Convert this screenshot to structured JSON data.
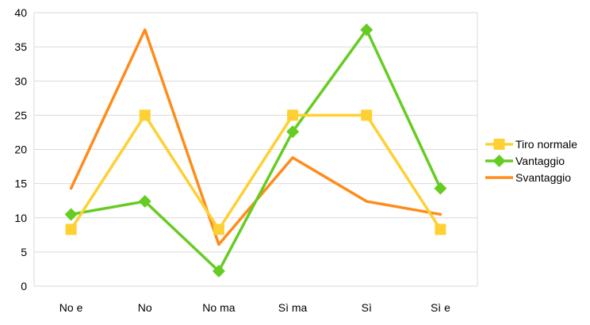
{
  "chart_data": {
    "type": "line",
    "title": "",
    "xlabel": "",
    "ylabel": "",
    "categories": [
      "No e",
      "No",
      "No ma",
      "Sì ma",
      "Sì",
      "Sì e"
    ],
    "ylim": [
      0,
      40
    ],
    "yticks": [
      0,
      5,
      10,
      15,
      20,
      25,
      30,
      35,
      40
    ],
    "grid": true,
    "legend_position": "right",
    "series": [
      {
        "name": "Tiro normale",
        "values": [
          8.3,
          25.0,
          8.3,
          25.0,
          25.0,
          8.3
        ],
        "color": "#FFD033",
        "marker": "square"
      },
      {
        "name": "Vantaggio",
        "values": [
          10.5,
          12.4,
          2.2,
          22.6,
          37.5,
          14.3
        ],
        "color": "#66CC22",
        "marker": "diamond"
      },
      {
        "name": "Svantaggio",
        "values": [
          14.3,
          37.5,
          6.1,
          18.8,
          12.4,
          10.5
        ],
        "color": "#FF8C1A",
        "marker": "none"
      }
    ]
  }
}
